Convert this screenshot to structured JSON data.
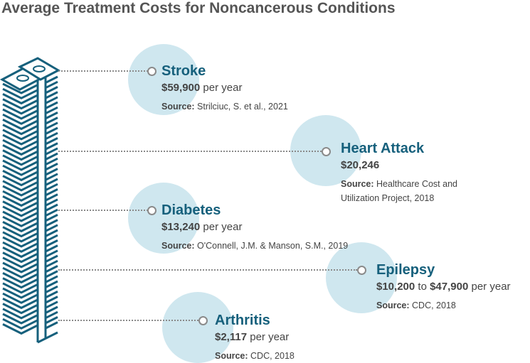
{
  "title": "Average Treatment Costs for Noncancerous Conditions",
  "colors": {
    "heading": "#16607c",
    "circle": "#cfe7ef",
    "icon": "#16607c",
    "title": "#555555"
  },
  "icon": "money-stack-icon",
  "source_label": "Source:",
  "items": [
    {
      "name": "Stroke",
      "cost": "$59,900",
      "cost_suffix": "per year",
      "source": "Strilciuc, S. et al., 2021"
    },
    {
      "name": "Heart Attack",
      "cost": "$20,246",
      "source_line1": "Healthcare Cost and",
      "source_line2": "Utilization Project, 2018"
    },
    {
      "name": "Diabetes",
      "cost": "$13,240",
      "cost_suffix": "per year",
      "source": "O'Connell, J.M. & Manson, S.M., 2019"
    },
    {
      "name": "Epilepsy",
      "cost_low": "$10,200",
      "cost_to": "to",
      "cost_high": "$47,900",
      "cost_suffix": "per year",
      "source": "CDC, 2018"
    },
    {
      "name": "Arthritis",
      "cost": "$2,117",
      "cost_suffix": "per year",
      "source": "CDC, 2018"
    }
  ]
}
